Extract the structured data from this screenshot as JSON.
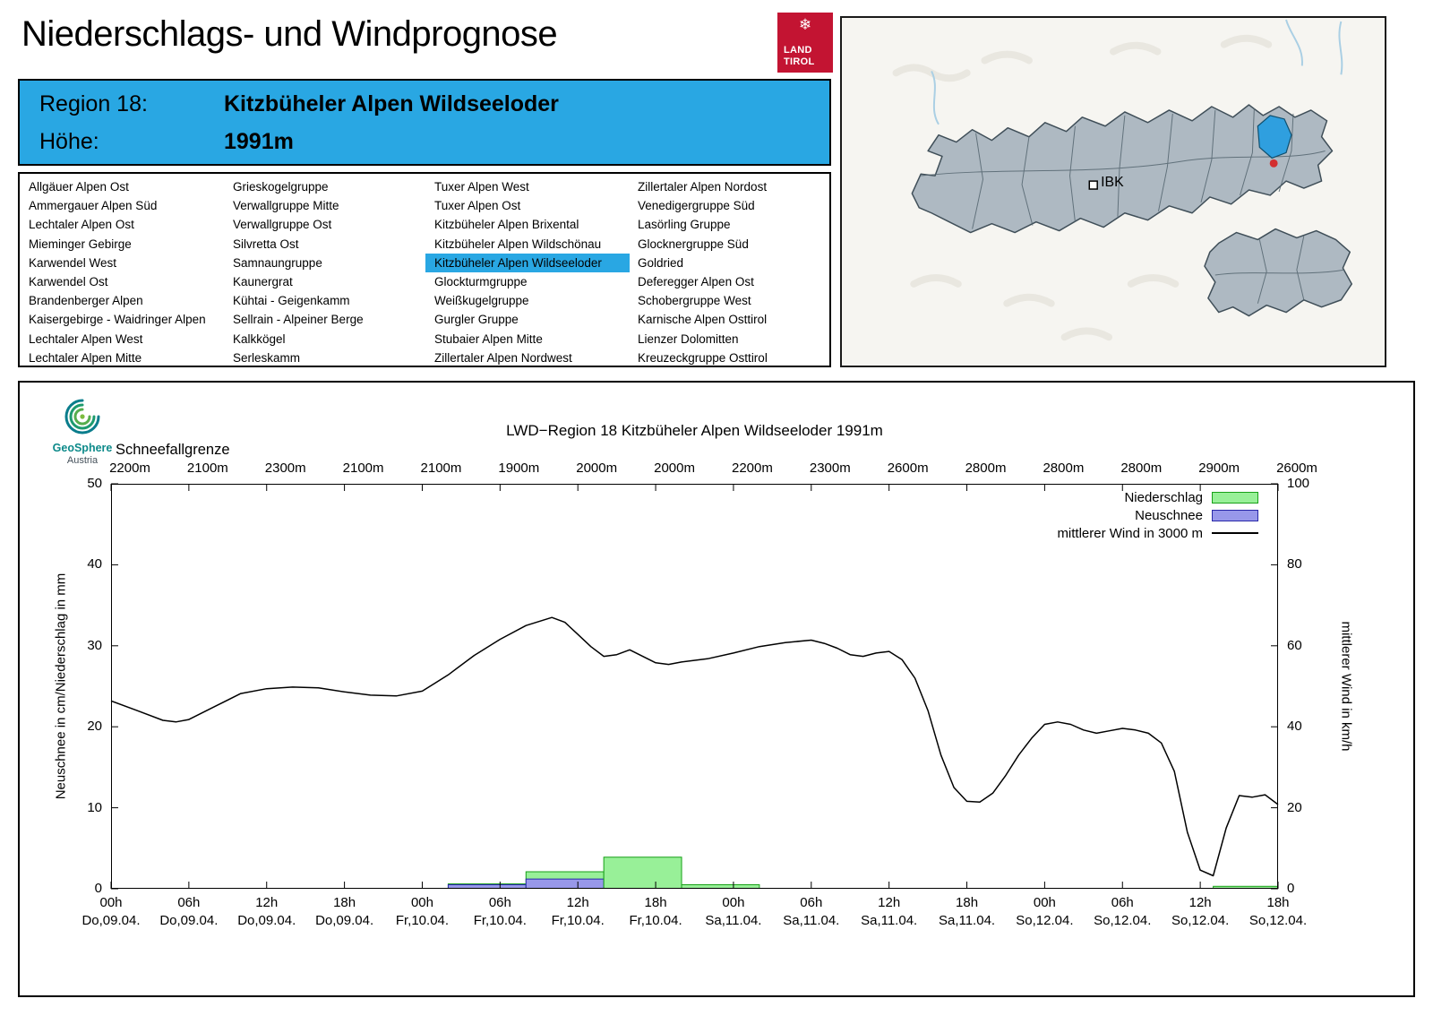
{
  "header": {
    "title": "Niederschlags- und Windprognose",
    "logo_line1": "LAND",
    "logo_line2": "TIROL",
    "region_label": "Region 18:",
    "region_value": "Kitzbüheler Alpen Wildseeloder",
    "altitude_label": "Höhe:",
    "altitude_value": "1991m"
  },
  "colors": {
    "accent_blue": "#29a7e3",
    "tirol_red": "#c31432"
  },
  "map": {
    "ibk_label": "IBK"
  },
  "branding": {
    "geosphere_line1": "GeoSphere",
    "geosphere_line2": "Austria"
  },
  "regions": {
    "selected_column": 2,
    "selected_index": 4,
    "columns": [
      [
        "Allgäuer Alpen Ost",
        "Ammergauer Alpen Süd",
        "Lechtaler Alpen Ost",
        "Mieminger Gebirge",
        "Karwendel West",
        "Karwendel Ost",
        "Brandenberger Alpen",
        "Kaisergebirge - Waidringer Alpen",
        "Lechtaler Alpen West",
        "Lechtaler Alpen Mitte"
      ],
      [
        "Grieskogelgruppe",
        "Verwallgruppe Mitte",
        "Verwallgruppe Ost",
        "Silvretta Ost",
        "Samnaungruppe",
        "Kaunergrat",
        "Kühtai - Geigenkamm",
        "Sellrain - Alpeiner Berge",
        "Kalkkögel",
        "Serleskamm"
      ],
      [
        "Tuxer Alpen West",
        "Tuxer Alpen Ost",
        "Kitzbüheler Alpen Brixental",
        "Kitzbüheler Alpen Wildschönau",
        "Kitzbüheler Alpen Wildseeloder",
        "Glockturmgruppe",
        "Weißkugelgruppe",
        "Gurgler Gruppe",
        "Stubaier Alpen Mitte",
        "Zillertaler Alpen Nordwest"
      ],
      [
        "Zillertaler Alpen Nordost",
        "Venedigergruppe Süd",
        "Lasörling Gruppe",
        "Glocknergruppe Süd",
        "Goldried",
        "Deferegger Alpen Ost",
        "Schobergruppe West",
        "Karnische Alpen Osttirol",
        "Lienzer Dolomitten",
        "Kreuzeckgruppe Osttirol"
      ]
    ]
  },
  "chart_data": {
    "type": "bar+line",
    "title": "LWD−Region 18 Kitzbüheler Alpen Wildseeloder 1991m",
    "snowline_label": "Schneefallgrenze",
    "snowline_values": [
      "2200m",
      "2100m",
      "2300m",
      "2100m",
      "2100m",
      "1900m",
      "2000m",
      "2000m",
      "2200m",
      "2300m",
      "2600m",
      "2800m",
      "2800m",
      "2800m",
      "2900m",
      "2600m"
    ],
    "ylabel_left": "Neuschnee in cm/Niederschlag in mm",
    "ylabel_right": "mittlerer Wind in km/h",
    "ylim_left": [
      0,
      50
    ],
    "ylim_right": [
      0,
      100
    ],
    "x_hours_range": [
      0,
      90
    ],
    "grid": false,
    "legend_position": "top-right-inside",
    "x_ticks": [
      {
        "hour": "00h",
        "date": "Do,09.04."
      },
      {
        "hour": "06h",
        "date": "Do,09.04."
      },
      {
        "hour": "12h",
        "date": "Do,09.04."
      },
      {
        "hour": "18h",
        "date": "Do,09.04."
      },
      {
        "hour": "00h",
        "date": "Fr,10.04."
      },
      {
        "hour": "06h",
        "date": "Fr,10.04."
      },
      {
        "hour": "12h",
        "date": "Fr,10.04."
      },
      {
        "hour": "18h",
        "date": "Fr,10.04."
      },
      {
        "hour": "00h",
        "date": "Sa,11.04."
      },
      {
        "hour": "06h",
        "date": "Sa,11.04."
      },
      {
        "hour": "12h",
        "date": "Sa,11.04."
      },
      {
        "hour": "18h",
        "date": "Sa,11.04."
      },
      {
        "hour": "00h",
        "date": "So,12.04."
      },
      {
        "hour": "06h",
        "date": "So,12.04."
      },
      {
        "hour": "12h",
        "date": "So,12.04."
      },
      {
        "hour": "18h",
        "date": "So,12.04."
      }
    ],
    "colors": {
      "niederschlag_fill": "#98f098",
      "niederschlag_border": "#18a018",
      "neuschnee_fill": "#9898ea",
      "neuschnee_border": "#2828a8",
      "wind_line": "#000000"
    },
    "legend": [
      {
        "label": "Niederschlag",
        "type": "box",
        "fill": "#98f098",
        "border": "#18a018"
      },
      {
        "label": "Neuschnee",
        "type": "box",
        "fill": "#9898ea",
        "border": "#2828a8"
      },
      {
        "label": "mittlerer Wind in 3000 m",
        "type": "line",
        "color": "#000000"
      }
    ],
    "bars": [
      {
        "from_h": 26,
        "to_h": 32,
        "niederschlag_mm": 0.6,
        "neuschnee_cm": 0.5
      },
      {
        "from_h": 32,
        "to_h": 38,
        "niederschlag_mm": 2.1,
        "neuschnee_cm": 1.2
      },
      {
        "from_h": 38,
        "to_h": 44,
        "niederschlag_mm": 3.9,
        "neuschnee_cm": 0
      },
      {
        "from_h": 44,
        "to_h": 50,
        "niederschlag_mm": 0.5,
        "neuschnee_cm": 0
      },
      {
        "from_h": 85,
        "to_h": 90,
        "niederschlag_mm": 0.3,
        "neuschnee_cm": 0
      }
    ],
    "wind_series": {
      "name": "mittlerer Wind in 3000 m",
      "unit": "km/h",
      "points": [
        [
          0,
          46.4
        ],
        [
          2,
          44.0
        ],
        [
          4,
          41.6
        ],
        [
          5,
          41.2
        ],
        [
          6,
          41.8
        ],
        [
          8,
          45.0
        ],
        [
          10,
          48.2
        ],
        [
          12,
          49.4
        ],
        [
          14,
          49.8
        ],
        [
          16,
          49.6
        ],
        [
          18,
          48.6
        ],
        [
          20,
          47.8
        ],
        [
          22,
          47.6
        ],
        [
          24,
          48.8
        ],
        [
          26,
          52.8
        ],
        [
          28,
          57.6
        ],
        [
          30,
          61.6
        ],
        [
          32,
          65.0
        ],
        [
          34,
          67.0
        ],
        [
          35,
          65.8
        ],
        [
          36,
          62.8
        ],
        [
          37,
          59.8
        ],
        [
          38,
          57.4
        ],
        [
          39,
          57.8
        ],
        [
          40,
          59.0
        ],
        [
          41,
          57.4
        ],
        [
          42,
          55.8
        ],
        [
          43,
          55.4
        ],
        [
          44,
          56.0
        ],
        [
          46,
          56.8
        ],
        [
          48,
          58.2
        ],
        [
          50,
          59.8
        ],
        [
          52,
          60.8
        ],
        [
          54,
          61.4
        ],
        [
          55,
          60.6
        ],
        [
          56,
          59.4
        ],
        [
          57,
          57.8
        ],
        [
          58,
          57.4
        ],
        [
          59,
          58.2
        ],
        [
          60,
          58.6
        ],
        [
          61,
          56.6
        ],
        [
          62,
          52.0
        ],
        [
          63,
          44.0
        ],
        [
          64,
          33.0
        ],
        [
          65,
          25.0
        ],
        [
          66,
          21.6
        ],
        [
          67,
          21.4
        ],
        [
          68,
          23.6
        ],
        [
          69,
          28.0
        ],
        [
          70,
          33.0
        ],
        [
          71,
          37.2
        ],
        [
          72,
          40.6
        ],
        [
          73,
          41.2
        ],
        [
          74,
          40.6
        ],
        [
          75,
          39.2
        ],
        [
          76,
          38.4
        ],
        [
          77,
          39.0
        ],
        [
          78,
          39.6
        ],
        [
          79,
          39.2
        ],
        [
          80,
          38.4
        ],
        [
          81,
          36.0
        ],
        [
          82,
          29.0
        ],
        [
          83,
          14.0
        ],
        [
          84,
          4.6
        ],
        [
          85,
          3.2
        ],
        [
          86,
          15.0
        ],
        [
          87,
          23.0
        ],
        [
          88,
          22.6
        ],
        [
          89,
          23.2
        ],
        [
          90,
          20.8
        ]
      ]
    }
  }
}
